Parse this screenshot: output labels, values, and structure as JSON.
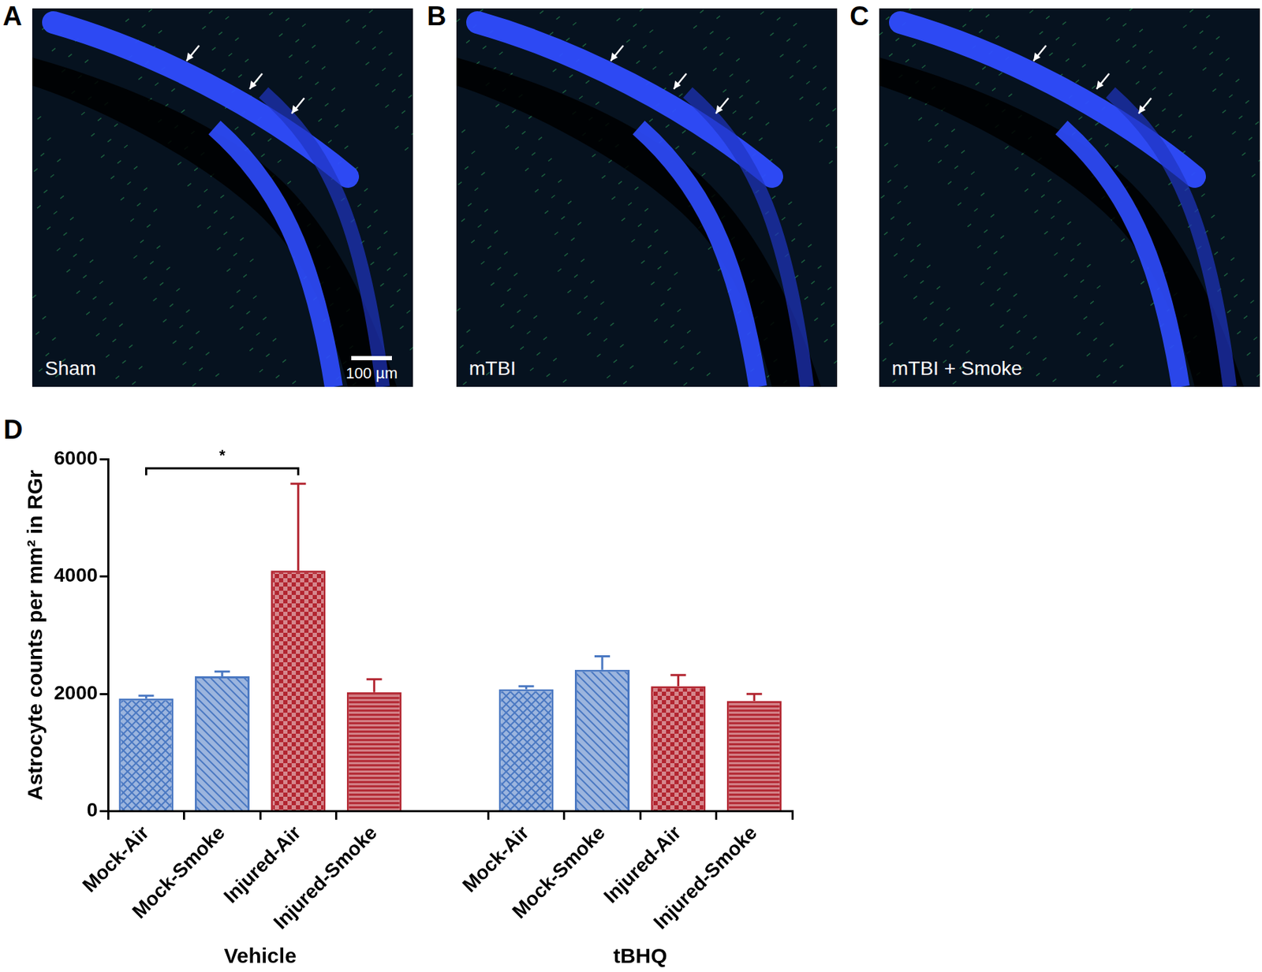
{
  "figure": {
    "panels": [
      {
        "letter": "A",
        "label": "Sham",
        "scale_bar": "100 µm"
      },
      {
        "letter": "B",
        "label": "mTBI"
      },
      {
        "letter": "C",
        "label": "mTBI + Smoke"
      }
    ],
    "chart_letter": "D"
  },
  "chart_data": {
    "type": "bar",
    "y_label": "Astrocyte counts per mm² in RGr",
    "categories": [
      "Mock-Air",
      "Mock-Smoke",
      "Injured-Air",
      "Injured-Smoke",
      null,
      "Mock-Air",
      "Mock-Smoke",
      "Injured-Air",
      "Injured-Smoke"
    ],
    "values": [
      1920,
      2300,
      4100,
      2030,
      null,
      2080,
      2410,
      2130,
      1880
    ],
    "errors": [
      50,
      80,
      1480,
      220,
      null,
      50,
      230,
      190,
      120
    ],
    "colors": [
      "#4a78c2",
      "#4a78c2",
      "#b22530",
      "#b22530",
      null,
      "#4a78c2",
      "#4a78c2",
      "#b22530",
      "#b22530"
    ],
    "groups": [
      {
        "label": "Vehicle",
        "span": [
          0,
          3
        ]
      },
      {
        "label": "tBHQ",
        "span": [
          5,
          8
        ]
      }
    ],
    "significance": [
      {
        "from": 0,
        "to": 2,
        "label": "*"
      }
    ],
    "ylim": [
      0,
      6000
    ],
    "yticks": [
      0,
      2000,
      4000,
      6000
    ],
    "grid": false
  }
}
